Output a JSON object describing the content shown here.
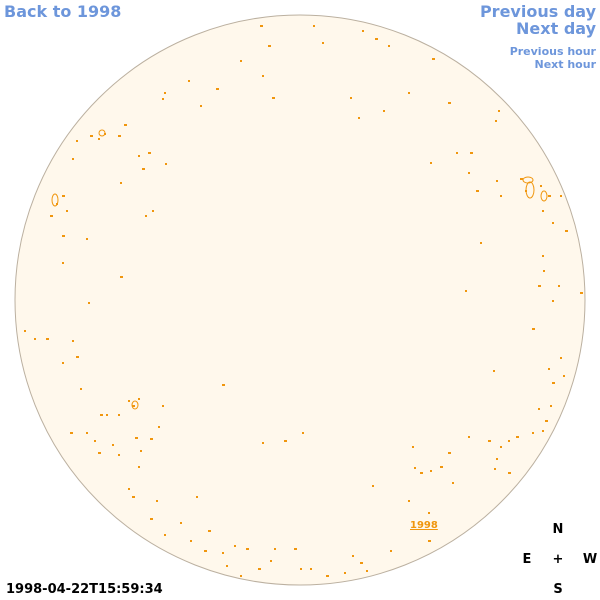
{
  "nav": {
    "back_label": "Back to 1998",
    "prev_day_label": "Previous day",
    "next_day_label": "Next day",
    "prev_hour_label": "Previous hour",
    "next_hour_label": "Next hour"
  },
  "timestamp": "1998-04-22T15:59:34",
  "year_label": "1998",
  "compass": {
    "north": "N",
    "south": "S",
    "east": "E",
    "west": "W",
    "center": "+"
  },
  "colors": {
    "link": "#6d96db",
    "disk_fill": "#fff8ec",
    "disk_stroke": "#bbb0a0",
    "contour": "#f0960e"
  }
}
